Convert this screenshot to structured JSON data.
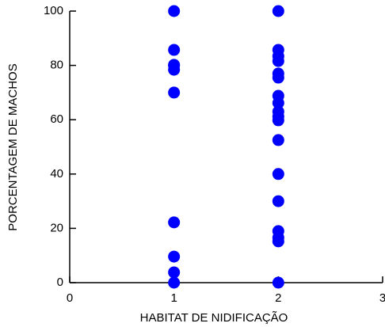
{
  "chart_data": {
    "type": "scatter",
    "xlabel": "HABITAT DE NIDIFICAÇÃO",
    "ylabel": "PORCENTAGEM DE MACHOS",
    "x": [
      1,
      1,
      1,
      1,
      1,
      1,
      1,
      1,
      1,
      1,
      2,
      2,
      2,
      2,
      2,
      2,
      2,
      2,
      2,
      2,
      2,
      2,
      2,
      2,
      2,
      2,
      2,
      2
    ],
    "values": [
      100,
      85.7,
      80.2,
      80,
      78.4,
      70,
      22.2,
      9.6,
      3.8,
      0,
      100,
      85.7,
      83.4,
      81.6,
      77,
      75.5,
      68.8,
      66.2,
      63,
      61.2,
      59.8,
      52.5,
      40,
      30,
      19,
      16.6,
      15.2,
      0
    ],
    "color": "#0000ff",
    "xlim": [
      0,
      3
    ],
    "xticks": [
      0,
      1,
      2,
      3
    ],
    "ylim": [
      0,
      100
    ],
    "yticks": [
      0,
      20,
      40,
      60,
      80,
      100
    ]
  }
}
